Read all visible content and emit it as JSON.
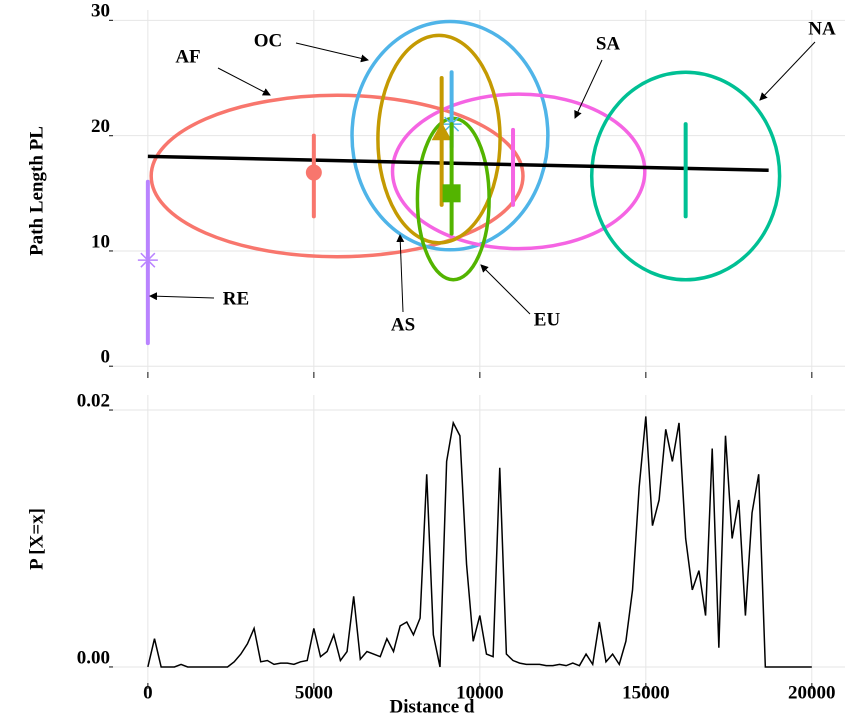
{
  "chart_data": [
    {
      "type": "scatter",
      "ylabel": "Path Length PL",
      "xlim": [
        -1050,
        21000
      ],
      "ylim": [
        -0.5,
        30.9
      ],
      "xticks": [
        0,
        5000,
        10000,
        15000,
        20000
      ],
      "yticks": [
        0,
        10,
        20,
        30
      ],
      "grid": true,
      "fit_line": {
        "color": "#000000",
        "x": [
          0,
          18700
        ],
        "y": [
          18.2,
          17
        ]
      },
      "series": [
        {
          "name": "AF",
          "color": "#f8766d",
          "marker": "circle",
          "x": 5000,
          "y": 16.8,
          "range": [
            13,
            20
          ],
          "ellipse": {
            "cx": 5700,
            "cy": 16.5,
            "rx": 5600,
            "ry": 7
          }
        },
        {
          "name": "OC",
          "color": "#4fb4e8",
          "marker": "star",
          "x": 9150,
          "y": 21,
          "range": [
            19,
            25.5
          ],
          "ellipse": {
            "cx": 9100,
            "cy": 20,
            "rx": 2950,
            "ry": 9.9
          }
        },
        {
          "name": "SA",
          "color": "#f564e3",
          "marker": "none",
          "x": 11000,
          "y": 17,
          "range": [
            14,
            20.5
          ],
          "ellipse": {
            "cx": 11170,
            "cy": 16.9,
            "rx": 3800,
            "ry": 6.7
          }
        },
        {
          "name": "NA",
          "color": "#00c094",
          "marker": "none",
          "x": 16200,
          "y": 17,
          "range": [
            13,
            21
          ],
          "ellipse": {
            "cx": 16200,
            "cy": 16.5,
            "rx": 2830,
            "ry": 9
          }
        },
        {
          "name": "RE",
          "color": "#b983ff",
          "marker": "star",
          "x": 0,
          "y": 9.2,
          "range": [
            2,
            16
          ]
        },
        {
          "name": "AS",
          "color": "#c49a02",
          "marker": "triangle",
          "x": 8850,
          "y": 20.3,
          "range": [
            14,
            25
          ],
          "ellipse": {
            "cx": 8770,
            "cy": 19.7,
            "rx": 1840,
            "ry": 9
          }
        },
        {
          "name": "EU",
          "color": "#53b400",
          "marker": "square",
          "x": 9150,
          "y": 15,
          "range": [
            11.5,
            21
          ],
          "ellipse": {
            "cx": 9200,
            "cy": 14.5,
            "rx": 1080,
            "ry": 7
          }
        }
      ]
    },
    {
      "type": "line",
      "ylabel": "P [X=x]",
      "xlabel": "Distance d",
      "color": "#000000",
      "xlim": [
        -1050,
        21000
      ],
      "ylim": [
        -0.00125,
        0.02117
      ],
      "xticks": [
        0,
        5000,
        10000,
        15000,
        20000
      ],
      "yticks": [
        {
          "value": 0,
          "label": "0.00"
        },
        {
          "value": 0.02,
          "label": "0.02"
        }
      ],
      "grid": true,
      "x": [
        0,
        200,
        400,
        600,
        800,
        1000,
        1200,
        1400,
        1600,
        1800,
        2000,
        2200,
        2400,
        2600,
        2800,
        3000,
        3200,
        3400,
        3600,
        3800,
        4000,
        4200,
        4400,
        4600,
        4800,
        5000,
        5200,
        5400,
        5600,
        5800,
        6000,
        6200,
        6400,
        6600,
        6800,
        7000,
        7200,
        7400,
        7600,
        7800,
        8000,
        8200,
        8400,
        8600,
        8800,
        9000,
        9200,
        9400,
        9600,
        9800,
        10000,
        10200,
        10400,
        10600,
        10800,
        11000,
        11200,
        11400,
        11600,
        11800,
        12000,
        12200,
        12400,
        12600,
        12800,
        13000,
        13200,
        13400,
        13600,
        13800,
        14000,
        14200,
        14400,
        14600,
        14800,
        15000,
        15200,
        15400,
        15600,
        15800,
        16000,
        16200,
        16400,
        16600,
        16800,
        17000,
        17200,
        17400,
        17600,
        17800,
        18000,
        18200,
        18400,
        18600,
        18800,
        19000,
        19200,
        19400,
        19600,
        19800,
        20000
      ],
      "values": [
        0,
        0.0022,
        0,
        0,
        0,
        0.0002,
        0,
        0,
        0,
        0,
        0,
        0,
        0,
        0.0004,
        0.001,
        0.0018,
        0.003,
        0.0004,
        0.0005,
        0.0002,
        0.0003,
        0.0003,
        0.0002,
        0.0004,
        0.0005,
        0.003,
        0.0008,
        0.0012,
        0.0025,
        0.0005,
        0.0012,
        0.0055,
        0.0006,
        0.0012,
        0.001,
        0.0008,
        0.0022,
        0.0012,
        0.0032,
        0.0035,
        0.0025,
        0.0038,
        0.015,
        0.0025,
        0,
        0.016,
        0.019,
        0.018,
        0.008,
        0.002,
        0.004,
        0.001,
        0.0008,
        0.0155,
        0.001,
        0.0005,
        0.0003,
        0.0002,
        0.0002,
        0.0002,
        0.0001,
        0.0001,
        0.0002,
        0.0001,
        0.0003,
        0.0001,
        0.001,
        0.0002,
        0.0035,
        0.0004,
        0.001,
        0.0002,
        0.002,
        0.006,
        0.014,
        0.0195,
        0.011,
        0.013,
        0.0185,
        0.016,
        0.019,
        0.01,
        0.006,
        0.0075,
        0.004,
        0.017,
        0.0015,
        0.018,
        0.01,
        0.013,
        0.004,
        0.012,
        0.015,
        0,
        0,
        0,
        0,
        0,
        0,
        0,
        0
      ]
    }
  ]
}
